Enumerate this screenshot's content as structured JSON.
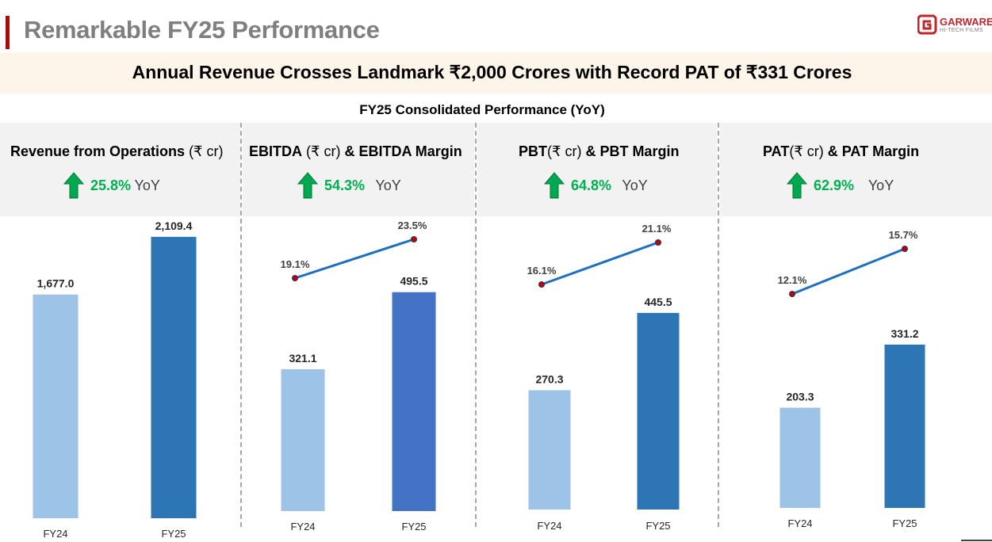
{
  "page": {
    "title": "Remarkable FY25 Performance",
    "headline": "Annual Revenue Crosses Landmark ₹2,000 Crores with Record PAT of ₹331 Crores",
    "subtitle": "FY25 Consolidated Performance (YoY)"
  },
  "logo": {
    "name": "GARWARE",
    "tagline": "HI-TECH FILMS"
  },
  "colors": {
    "fy24_bar": "#9dc3e6",
    "fy25_bar": "#2e75b6",
    "ebitda_fy25_bar": "#4472c4",
    "margin_line": "#1f6fbf",
    "margin_marker": "#c00000",
    "growth_green": "#00b050",
    "accent": "#c00000"
  },
  "panels": [
    {
      "title_bold": "Revenue from Operations",
      "title_rest": " (₹ cr)",
      "growth": "25.8%",
      "yoy": "YoY",
      "icon": "up-arrow-icon"
    },
    {
      "title_bold": "EBITDA",
      "title_rest": " (₹ cr) ",
      "title_bold2": "& EBITDA Margin",
      "growth": "54.3%",
      "yoy": "YoY",
      "icon": "up-arrow-icon"
    },
    {
      "title_bold": "PBT",
      "title_rest": "(₹ cr) ",
      "title_bold2": "& PBT Margin",
      "growth": "64.8%",
      "yoy": "YoY",
      "icon": "up-arrow-icon"
    },
    {
      "title_bold": "PAT",
      "title_rest": "(₹ cr) ",
      "title_bold2": "& PAT Margin",
      "growth": "62.9%",
      "yoy": "YoY",
      "icon": "up-arrow-icon"
    }
  ],
  "chart_data": [
    {
      "type": "bar",
      "title": "Revenue from Operations (₹ cr)",
      "categories": [
        "FY24",
        "FY25"
      ],
      "series": [
        {
          "values": [
            1677.0,
            2109.4
          ],
          "labels": [
            "1,677.0",
            "2,109.4"
          ]
        }
      ]
    },
    {
      "type": "bar",
      "title": "EBITDA (₹ cr) & EBITDA Margin",
      "categories": [
        "FY24",
        "FY25"
      ],
      "series": [
        {
          "values": [
            321.1,
            495.5
          ],
          "labels": [
            "321.1",
            "495.5"
          ]
        },
        {
          "type": "line",
          "values": [
            19.1,
            23.5
          ],
          "labels": [
            "19.1%",
            "23.5%"
          ]
        }
      ]
    },
    {
      "type": "bar",
      "title": "PBT(₹ cr) & PBT Margin",
      "categories": [
        "FY24",
        "FY25"
      ],
      "series": [
        {
          "values": [
            270.3,
            445.5
          ],
          "labels": [
            "270.3",
            "445.5"
          ]
        },
        {
          "type": "line",
          "values": [
            16.1,
            21.1
          ],
          "labels": [
            "16.1%",
            "21.1%"
          ]
        }
      ]
    },
    {
      "type": "bar",
      "title": "PAT(₹ cr) & PAT Margin",
      "categories": [
        "FY24",
        "FY25"
      ],
      "series": [
        {
          "values": [
            203.3,
            331.2
          ],
          "labels": [
            "203.3",
            "331.2"
          ]
        },
        {
          "type": "line",
          "values": [
            12.1,
            15.7
          ],
          "labels": [
            "12.1%",
            "15.7%"
          ]
        }
      ]
    }
  ]
}
